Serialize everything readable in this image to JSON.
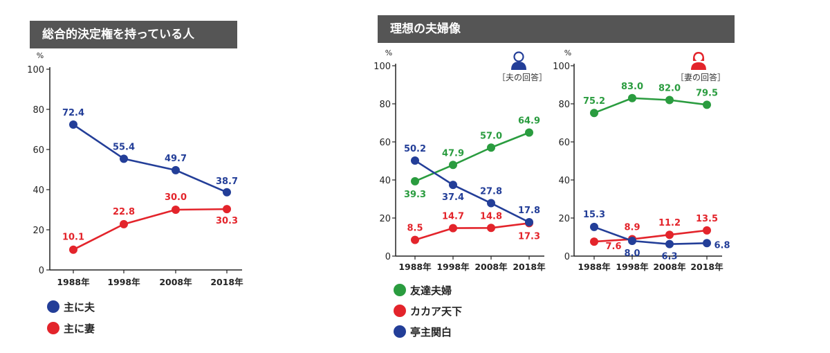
{
  "left_panel": {
    "title": "総合的決定権を持っている人",
    "legend": [
      {
        "label": "主に夫",
        "color": "#233e98"
      },
      {
        "label": "主に妻",
        "color": "#e3242b"
      }
    ]
  },
  "right_panel": {
    "title": "理想の夫婦像",
    "husband_caption": "［夫の回答］",
    "wife_caption": "［妻の回答］",
    "husband_icon": "husband-person-icon",
    "wife_icon": "wife-person-icon",
    "legend": [
      {
        "label": "友達夫婦",
        "color": "#2a9c3f"
      },
      {
        "label": "カカア天下",
        "color": "#e3242b"
      },
      {
        "label": "亭主関白",
        "color": "#233e98"
      }
    ]
  },
  "colors": {
    "blue": "#233e98",
    "red": "#e3242b",
    "green": "#2a9c3f",
    "banner": "#555555"
  },
  "chart_data": [
    {
      "type": "line",
      "title": "総合的決定権を持っている人",
      "unit": "%",
      "categories": [
        "1988年",
        "1998年",
        "2008年",
        "2018年"
      ],
      "ylim": [
        0,
        100
      ],
      "yticks": [
        0,
        20,
        40,
        60,
        80,
        100
      ],
      "series": [
        {
          "name": "主に夫",
          "color": "#233e98",
          "values": [
            72.4,
            55.4,
            49.7,
            38.7
          ],
          "labels": [
            "72.4",
            "55.4",
            "49.7",
            "38.7"
          ]
        },
        {
          "name": "主に妻",
          "color": "#e3242b",
          "values": [
            10.1,
            22.8,
            30.0,
            30.3
          ],
          "labels": [
            "10.1",
            "22.8",
            "30.0",
            "30.3"
          ]
        }
      ]
    },
    {
      "type": "line",
      "title": "［夫の回答］",
      "unit": "%",
      "categories": [
        "1988年",
        "1998年",
        "2008年",
        "2018年"
      ],
      "ylim": [
        0,
        100
      ],
      "yticks": [
        0,
        20,
        40,
        60,
        80,
        100
      ],
      "series": [
        {
          "name": "友達夫婦",
          "color": "#2a9c3f",
          "values": [
            39.3,
            47.9,
            57.0,
            64.9
          ],
          "labels": [
            "39.3",
            "47.9",
            "57.0",
            "64.9"
          ]
        },
        {
          "name": "カカア天下",
          "color": "#e3242b",
          "values": [
            8.5,
            14.7,
            14.8,
            17.3
          ],
          "labels": [
            "8.5",
            "14.7",
            "14.8",
            "17.3"
          ]
        },
        {
          "name": "亭主関白",
          "color": "#233e98",
          "values": [
            50.2,
            37.4,
            27.8,
            17.8
          ],
          "labels": [
            "50.2",
            "37.4",
            "27.8",
            "17.8"
          ]
        }
      ]
    },
    {
      "type": "line",
      "title": "［妻の回答］",
      "unit": "%",
      "categories": [
        "1988年",
        "1998年",
        "2008年",
        "2018年"
      ],
      "ylim": [
        0,
        100
      ],
      "yticks": [
        0,
        20,
        40,
        60,
        80,
        100
      ],
      "series": [
        {
          "name": "友達夫婦",
          "color": "#2a9c3f",
          "values": [
            75.2,
            83.0,
            82.0,
            79.5
          ],
          "labels": [
            "75.2",
            "83.0",
            "82.0",
            "79.5"
          ]
        },
        {
          "name": "カカア天下",
          "color": "#e3242b",
          "values": [
            7.6,
            8.9,
            11.2,
            13.5
          ],
          "labels": [
            "7.6",
            "8.9",
            "11.2",
            "13.5"
          ]
        },
        {
          "name": "亭主関白",
          "color": "#233e98",
          "values": [
            15.3,
            8.0,
            6.3,
            6.8
          ],
          "labels": [
            "15.3",
            "8.0",
            "6.3",
            "6.8"
          ]
        }
      ]
    }
  ]
}
